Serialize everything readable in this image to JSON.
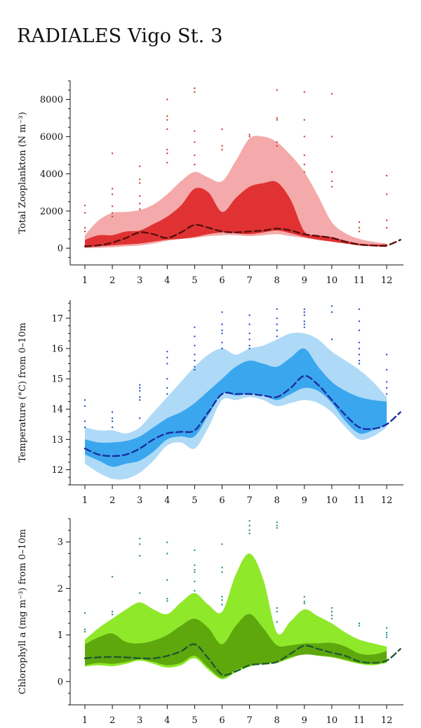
{
  "page": {
    "title": "RADIALES Vigo St. 3"
  },
  "chart_data": [
    {
      "type": "area",
      "name": "zooplankton",
      "ylabel": "Total Zooplankton (N m⁻³)",
      "x_ticks": [
        1,
        2,
        3,
        4,
        5,
        6,
        7,
        8,
        9,
        10,
        11,
        12
      ],
      "y_ticks": [
        0,
        2000,
        4000,
        6000,
        8000
      ],
      "xlim": [
        0.5,
        12.6
      ],
      "ylim": [
        -900,
        9000
      ],
      "colors": {
        "outer": "#f4aaaa",
        "inner": "#e03232",
        "median": "#5a0f0f",
        "dots": "#c8402c"
      },
      "outer_band": {
        "x": [
          1,
          1.5,
          2,
          2.5,
          3,
          3.5,
          4,
          4.5,
          5,
          5.5,
          6,
          6.5,
          7,
          7.5,
          8,
          8.5,
          9,
          9.5,
          10,
          10.5,
          11,
          11.5,
          12
        ],
        "upper": [
          700,
          1500,
          1900,
          1950,
          2050,
          2350,
          2900,
          3600,
          4100,
          3800,
          3600,
          4700,
          5900,
          6000,
          5700,
          5000,
          4100,
          2800,
          1400,
          800,
          500,
          350,
          250
        ],
        "lower": [
          0,
          20,
          50,
          100,
          150,
          250,
          400,
          500,
          550,
          650,
          700,
          700,
          650,
          700,
          750,
          650,
          550,
          450,
          350,
          250,
          150,
          100,
          50
        ]
      },
      "inner_band": {
        "x": [
          1,
          1.5,
          2,
          2.5,
          3,
          3.5,
          4,
          4.5,
          5,
          5.5,
          6,
          6.5,
          7,
          7.5,
          8,
          8.5,
          9,
          9.5,
          10,
          10.5,
          11,
          11.5,
          12
        ],
        "upper": [
          450,
          700,
          700,
          900,
          950,
          1300,
          1700,
          2300,
          3200,
          3000,
          1950,
          2700,
          3300,
          3500,
          3550,
          2600,
          900,
          700,
          600,
          400,
          250,
          200,
          200
        ],
        "lower": [
          50,
          100,
          150,
          200,
          250,
          350,
          450,
          500,
          600,
          750,
          850,
          800,
          750,
          850,
          950,
          800,
          600,
          450,
          350,
          250,
          150,
          100,
          80
        ]
      },
      "median": {
        "x": [
          1,
          1.5,
          2,
          2.5,
          3,
          3.5,
          4,
          4.5,
          5,
          5.5,
          6,
          6.5,
          7,
          7.5,
          8,
          8.5,
          9,
          9.5,
          10,
          10.5,
          11,
          11.5,
          12,
          12.5
        ],
        "y": [
          100,
          150,
          300,
          550,
          850,
          750,
          550,
          850,
          1250,
          1100,
          900,
          850,
          900,
          950,
          1050,
          950,
          750,
          650,
          550,
          350,
          200,
          150,
          150,
          450
        ]
      },
      "points": [
        [
          1,
          2300
        ],
        [
          1,
          1900
        ],
        [
          1,
          1100
        ],
        [
          1,
          900
        ],
        [
          2,
          5100
        ],
        [
          2,
          3200
        ],
        [
          2,
          2900
        ],
        [
          2,
          2250
        ],
        [
          2,
          1900
        ],
        [
          2,
          1700
        ],
        [
          3,
          4400
        ],
        [
          3,
          3700
        ],
        [
          3,
          3500
        ],
        [
          3,
          2800
        ],
        [
          3,
          2400
        ],
        [
          3,
          2100
        ],
        [
          4,
          8000
        ],
        [
          4,
          7100
        ],
        [
          4,
          6900
        ],
        [
          4,
          6400
        ],
        [
          4,
          5300
        ],
        [
          4,
          5100
        ],
        [
          4,
          4600
        ],
        [
          5,
          8600
        ],
        [
          5,
          8400
        ],
        [
          5,
          6300
        ],
        [
          5,
          5700
        ],
        [
          5,
          5000
        ],
        [
          5,
          4500
        ],
        [
          6,
          6400
        ],
        [
          6,
          5500
        ],
        [
          6,
          5300
        ],
        [
          7,
          6100
        ],
        [
          7,
          6000
        ],
        [
          8,
          8500
        ],
        [
          8,
          7000
        ],
        [
          8,
          6900
        ],
        [
          8,
          5700
        ],
        [
          8,
          5500
        ],
        [
          9,
          8400
        ],
        [
          9,
          6900
        ],
        [
          9,
          6000
        ],
        [
          9,
          5000
        ],
        [
          9,
          4500
        ],
        [
          9,
          4100
        ],
        [
          10,
          8300
        ],
        [
          10,
          6000
        ],
        [
          10,
          4100
        ],
        [
          10,
          3600
        ],
        [
          10,
          3300
        ],
        [
          11,
          1400
        ],
        [
          11,
          1100
        ],
        [
          11,
          900
        ],
        [
          12,
          3900
        ],
        [
          12,
          2900
        ],
        [
          12,
          1500
        ],
        [
          12,
          1100
        ]
      ]
    },
    {
      "type": "area",
      "name": "temperature",
      "ylabel": "Temperature (°C) from 0–10m",
      "x_ticks": [
        1,
        2,
        3,
        4,
        5,
        6,
        7,
        8,
        9,
        10,
        11,
        12
      ],
      "y_ticks": [
        12,
        13,
        14,
        15,
        16,
        17
      ],
      "xlim": [
        0.5,
        12.6
      ],
      "ylim": [
        11.5,
        17.6
      ],
      "colors": {
        "outer": "#aedaf7",
        "inner": "#3aa6ee",
        "median": "#1c2e9e",
        "dots": "#2255cc"
      },
      "outer_band": {
        "x": [
          1,
          1.5,
          2,
          2.5,
          3,
          3.5,
          4,
          4.5,
          5,
          5.5,
          6,
          6.5,
          7,
          7.5,
          8,
          8.5,
          9,
          9.5,
          10,
          10.5,
          11,
          11.5,
          12
        ],
        "upper": [
          13.4,
          13.3,
          13.3,
          13.2,
          13.4,
          13.9,
          14.4,
          14.9,
          15.4,
          15.8,
          16.0,
          15.8,
          16.0,
          16.1,
          16.3,
          16.5,
          16.5,
          16.3,
          15.9,
          15.6,
          15.3,
          14.9,
          14.4
        ],
        "lower": [
          12.2,
          11.9,
          11.7,
          11.7,
          11.9,
          12.3,
          12.8,
          12.9,
          12.7,
          13.4,
          14.3,
          14.3,
          14.4,
          14.3,
          14.1,
          14.2,
          14.3,
          14.2,
          13.9,
          13.4,
          13.0,
          13.1,
          13.4
        ]
      },
      "inner_band": {
        "x": [
          1,
          1.5,
          2,
          2.5,
          3,
          3.5,
          4,
          4.5,
          5,
          5.5,
          6,
          6.5,
          7,
          7.5,
          8,
          8.5,
          9,
          9.5,
          10,
          10.5,
          11,
          11.5,
          12
        ],
        "upper": [
          13.0,
          12.9,
          12.9,
          12.95,
          13.1,
          13.4,
          13.7,
          13.9,
          14.2,
          14.6,
          15.0,
          15.4,
          15.6,
          15.5,
          15.4,
          15.7,
          16.0,
          15.4,
          14.9,
          14.6,
          14.4,
          14.3,
          14.25
        ],
        "lower": [
          12.5,
          12.3,
          12.1,
          12.2,
          12.3,
          12.6,
          13.0,
          13.1,
          13.1,
          13.8,
          14.5,
          14.45,
          14.5,
          14.45,
          14.3,
          14.5,
          14.7,
          14.6,
          14.2,
          13.6,
          13.2,
          13.3,
          13.5
        ]
      },
      "median": {
        "x": [
          1,
          1.5,
          2,
          2.5,
          3,
          3.5,
          4,
          4.5,
          5,
          5.5,
          6,
          6.5,
          7,
          7.5,
          8,
          8.5,
          9,
          9.5,
          10,
          10.5,
          11,
          11.5,
          12,
          12.5
        ],
        "y": [
          12.7,
          12.5,
          12.45,
          12.5,
          12.7,
          13.0,
          13.2,
          13.25,
          13.3,
          13.9,
          14.5,
          14.5,
          14.5,
          14.45,
          14.4,
          14.7,
          15.1,
          14.8,
          14.3,
          13.8,
          13.4,
          13.35,
          13.5,
          13.9
        ]
      },
      "points": [
        [
          1,
          14.3
        ],
        [
          1,
          14.1
        ],
        [
          1,
          13.6
        ],
        [
          1,
          13.4
        ],
        [
          2,
          13.9
        ],
        [
          2,
          13.7
        ],
        [
          2,
          13.6
        ],
        [
          2,
          13.4
        ],
        [
          3,
          14.8
        ],
        [
          3,
          14.7
        ],
        [
          3,
          14.6
        ],
        [
          3,
          14.4
        ],
        [
          3,
          14.3
        ],
        [
          3,
          13.7
        ],
        [
          4,
          15.9
        ],
        [
          4,
          15.7
        ],
        [
          4,
          15.5
        ],
        [
          4,
          15.0
        ],
        [
          4,
          14.7
        ],
        [
          4,
          14.5
        ],
        [
          5,
          16.7
        ],
        [
          5,
          16.4
        ],
        [
          5,
          16.1
        ],
        [
          5,
          15.8
        ],
        [
          5,
          15.6
        ],
        [
          5,
          15.4
        ],
        [
          5,
          15.3
        ],
        [
          6,
          17.2
        ],
        [
          6,
          16.8
        ],
        [
          6,
          16.6
        ],
        [
          6,
          16.5
        ],
        [
          6,
          16.2
        ],
        [
          6,
          16.0
        ],
        [
          7,
          17.1
        ],
        [
          7,
          16.8
        ],
        [
          7,
          16.5
        ],
        [
          7,
          16.3
        ],
        [
          7,
          16.1
        ],
        [
          7,
          16.0
        ],
        [
          8,
          17.3
        ],
        [
          8,
          17.0
        ],
        [
          8,
          16.8
        ],
        [
          8,
          16.6
        ],
        [
          8,
          16.4
        ],
        [
          9,
          17.3
        ],
        [
          9,
          17.2
        ],
        [
          9,
          17.1
        ],
        [
          9,
          16.9
        ],
        [
          9,
          16.8
        ],
        [
          9,
          16.7
        ],
        [
          10,
          17.4
        ],
        [
          10,
          17.2
        ],
        [
          10,
          16.3
        ],
        [
          11,
          17.3
        ],
        [
          11,
          16.9
        ],
        [
          11,
          16.6
        ],
        [
          11,
          16.2
        ],
        [
          11,
          16.0
        ],
        [
          11,
          15.8
        ],
        [
          11,
          15.6
        ],
        [
          11,
          15.5
        ],
        [
          12,
          15.8
        ],
        [
          12,
          15.3
        ],
        [
          12,
          14.9
        ],
        [
          12,
          14.7
        ],
        [
          12,
          14.5
        ]
      ]
    },
    {
      "type": "area",
      "name": "chlorophyll",
      "ylabel": "Chlorophyll a (mg m⁻³) from 0–10m",
      "x_ticks": [
        1,
        2,
        3,
        4,
        5,
        6,
        7,
        8,
        9,
        10,
        11,
        12
      ],
      "y_ticks": [
        0,
        1,
        2,
        3
      ],
      "xlim": [
        0.5,
        12.6
      ],
      "ylim": [
        -0.5,
        3.5
      ],
      "colors": {
        "outer": "#8fe82a",
        "inner": "#5ea80e",
        "median": "#1f5a2e",
        "dots": "#2a8a8a"
      },
      "outer_band": {
        "x": [
          1,
          1.5,
          2,
          2.5,
          3,
          3.5,
          4,
          4.5,
          5,
          5.5,
          6,
          6.5,
          7,
          7.5,
          8,
          8.5,
          9,
          9.5,
          10,
          10.5,
          11,
          11.5,
          12
        ],
        "upper": [
          0.9,
          1.15,
          1.35,
          1.55,
          1.7,
          1.55,
          1.45,
          1.7,
          1.9,
          1.65,
          1.5,
          2.3,
          2.75,
          2.2,
          1.05,
          1.3,
          1.55,
          1.4,
          1.25,
          1.05,
          0.9,
          0.82,
          0.75
        ],
        "lower": [
          0.32,
          0.35,
          0.33,
          0.38,
          0.45,
          0.38,
          0.3,
          0.35,
          0.5,
          0.25,
          0.05,
          0.2,
          0.32,
          0.38,
          0.4,
          0.5,
          0.6,
          0.55,
          0.52,
          0.45,
          0.38,
          0.35,
          0.4
        ]
      },
      "inner_band": {
        "x": [
          1,
          1.5,
          2,
          2.5,
          3,
          3.5,
          4,
          4.5,
          5,
          5.5,
          6,
          6.5,
          7,
          7.5,
          8,
          8.5,
          9,
          9.5,
          10,
          10.5,
          11,
          11.5,
          12
        ],
        "upper": [
          0.8,
          0.95,
          1.03,
          0.85,
          0.82,
          0.88,
          1.0,
          1.2,
          1.35,
          1.15,
          0.8,
          1.2,
          1.45,
          1.15,
          0.78,
          0.78,
          0.82,
          0.82,
          0.83,
          0.75,
          0.6,
          0.58,
          0.65
        ],
        "lower": [
          0.35,
          0.4,
          0.38,
          0.42,
          0.48,
          0.42,
          0.35,
          0.4,
          0.55,
          0.3,
          0.08,
          0.25,
          0.35,
          0.38,
          0.42,
          0.52,
          0.58,
          0.56,
          0.53,
          0.47,
          0.4,
          0.38,
          0.42
        ]
      },
      "median": {
        "x": [
          1,
          1.5,
          2,
          2.5,
          3,
          3.5,
          4,
          4.5,
          5,
          5.5,
          6,
          6.5,
          7,
          7.5,
          8,
          8.5,
          9,
          9.5,
          10,
          10.5,
          11,
          11.5,
          12,
          12.5
        ],
        "y": [
          0.5,
          0.52,
          0.53,
          0.52,
          0.5,
          0.5,
          0.55,
          0.65,
          0.8,
          0.5,
          0.15,
          0.22,
          0.35,
          0.38,
          0.42,
          0.6,
          0.77,
          0.7,
          0.62,
          0.55,
          0.43,
          0.4,
          0.45,
          0.7
        ]
      },
      "points": [
        [
          1,
          1.47
        ],
        [
          1,
          1.12
        ],
        [
          1,
          1.07
        ],
        [
          2,
          2.25
        ],
        [
          2,
          1.5
        ],
        [
          2,
          1.44
        ],
        [
          3,
          3.07
        ],
        [
          3,
          2.95
        ],
        [
          3,
          2.7
        ],
        [
          3,
          1.9
        ],
        [
          4,
          2.99
        ],
        [
          4,
          2.75
        ],
        [
          4,
          2.18
        ],
        [
          4,
          1.78
        ],
        [
          4,
          1.73
        ],
        [
          5,
          2.82
        ],
        [
          5,
          2.5
        ],
        [
          5,
          2.4
        ],
        [
          5,
          2.35
        ],
        [
          5,
          2.15
        ],
        [
          5,
          1.95
        ],
        [
          6,
          2.95
        ],
        [
          6,
          2.45
        ],
        [
          6,
          2.35
        ],
        [
          6,
          1.82
        ],
        [
          6,
          1.75
        ],
        [
          6,
          1.65
        ],
        [
          7,
          3.45
        ],
        [
          7,
          3.35
        ],
        [
          7,
          3.25
        ],
        [
          7,
          3.18
        ],
        [
          8,
          3.42
        ],
        [
          8,
          3.35
        ],
        [
          8,
          3.3
        ],
        [
          8,
          1.58
        ],
        [
          8,
          1.5
        ],
        [
          8,
          1.28
        ],
        [
          9,
          1.82
        ],
        [
          9,
          1.72
        ],
        [
          9,
          1.68
        ],
        [
          10,
          1.58
        ],
        [
          10,
          1.5
        ],
        [
          10,
          1.42
        ],
        [
          10,
          1.35
        ],
        [
          11,
          1.25
        ],
        [
          11,
          1.2
        ],
        [
          12,
          1.15
        ],
        [
          12,
          1.05
        ],
        [
          12,
          1.0
        ],
        [
          12,
          0.95
        ]
      ]
    }
  ]
}
